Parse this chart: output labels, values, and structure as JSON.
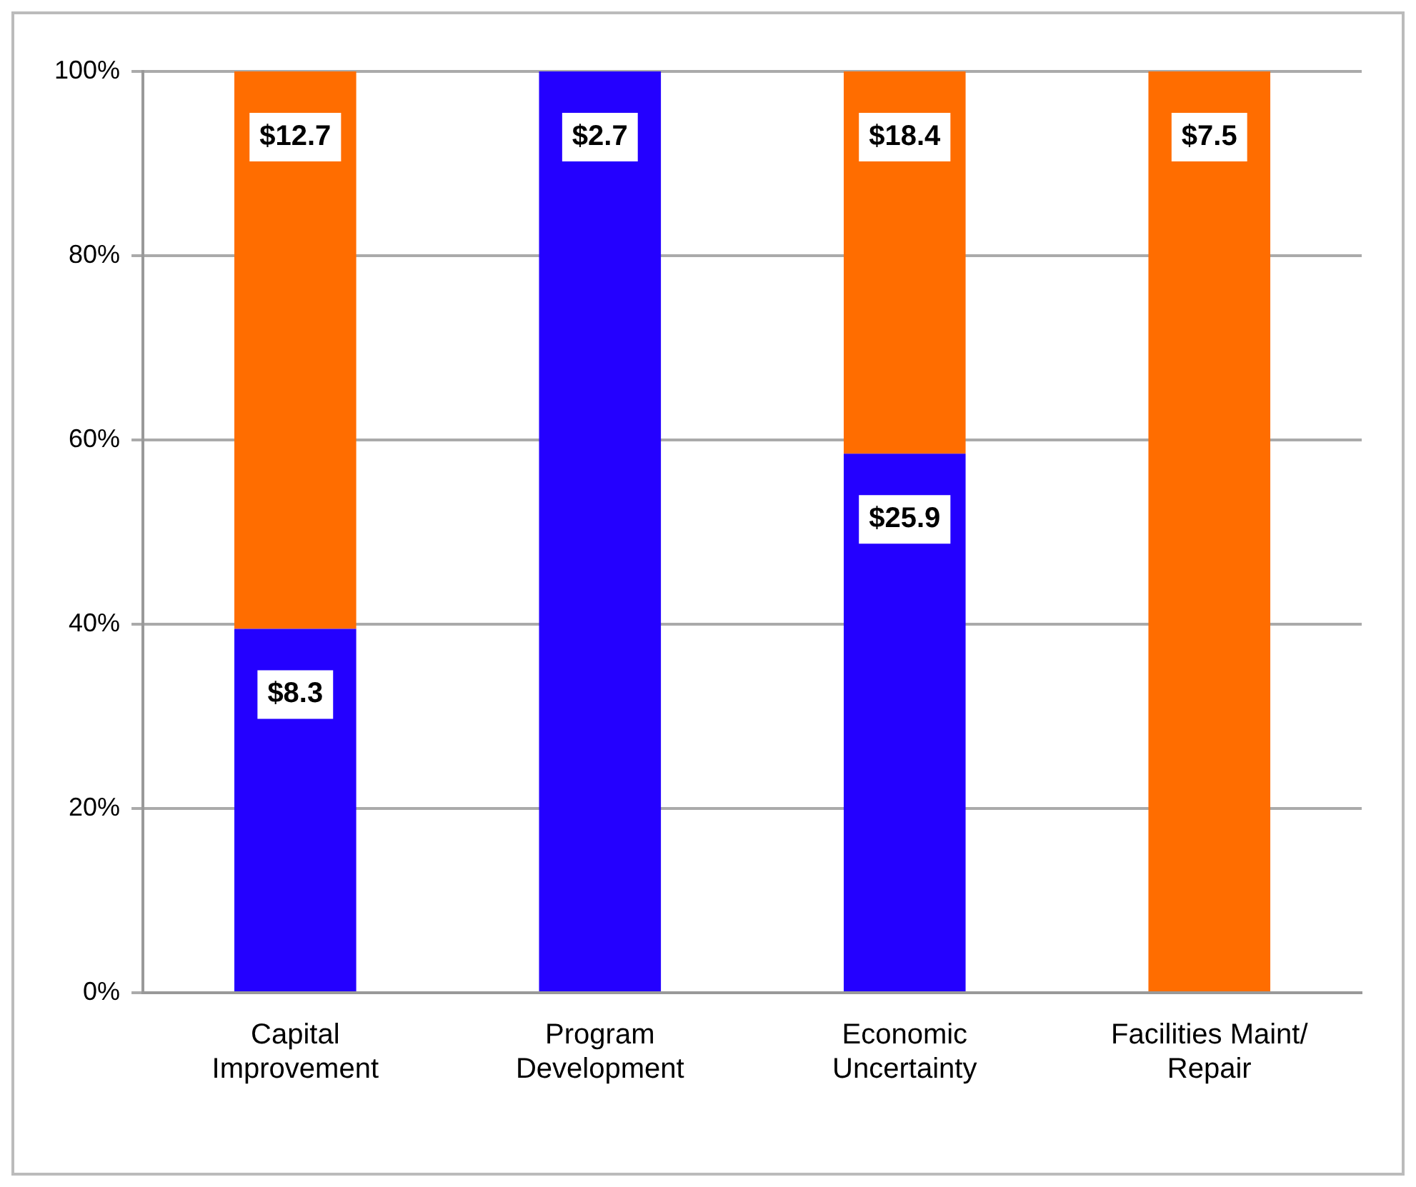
{
  "chart_data": {
    "type": "bar",
    "stacked": true,
    "categories": [
      "Capital Improvement",
      "Program Development",
      "Economic Uncertainty",
      "Facilities Maint/ Repair"
    ],
    "series": [
      {
        "color": "#2400ff",
        "values": [
          39.5,
          100,
          58.5,
          0
        ]
      },
      {
        "color": "#ff6d00",
        "values": [
          60.5,
          0,
          41.5,
          100
        ]
      }
    ],
    "annotations": [
      "$8.3",
      "$2.7",
      "$25.9",
      "$12.7",
      "$18.4",
      "$7.5"
    ],
    "ylim": [
      0,
      100
    ],
    "yticks": [
      {
        "value": 0,
        "label": "0%"
      },
      {
        "value": 20,
        "label": "20%"
      },
      {
        "value": 40,
        "label": "40%"
      },
      {
        "value": 60,
        "label": "60%"
      },
      {
        "value": 80,
        "label": "80%"
      },
      {
        "value": 100,
        "label": "100%"
      }
    ],
    "grid": "y",
    "legend": false
  }
}
